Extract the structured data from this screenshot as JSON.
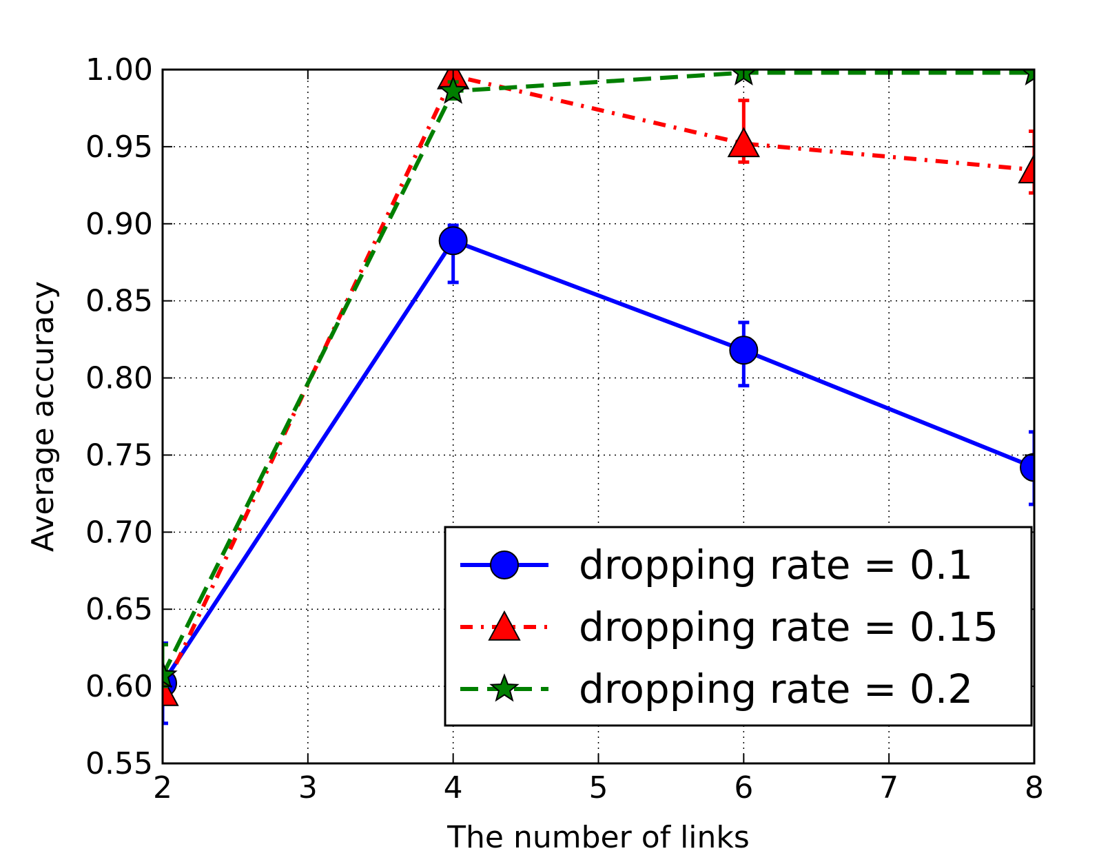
{
  "chart_data": {
    "type": "line",
    "title": "",
    "xlabel": "The number of links",
    "ylabel": "Average accuracy",
    "xlim": [
      2,
      8
    ],
    "ylim": [
      0.55,
      1.0
    ],
    "xticks": [
      "2",
      "3",
      "4",
      "5",
      "6",
      "7",
      "8"
    ],
    "yticks": [
      "0.55",
      "0.60",
      "0.65",
      "0.70",
      "0.75",
      "0.80",
      "0.85",
      "0.90",
      "0.95",
      "1.00"
    ],
    "grid": true,
    "legend_position": "lower-right",
    "series": [
      {
        "name": "dropping rate = 0.1",
        "color": "#0000ff",
        "marker": "circle",
        "line_style": "solid",
        "x": [
          2,
          4,
          6,
          8
        ],
        "y": [
          0.602,
          0.889,
          0.818,
          0.742
        ],
        "err_low": [
          0.576,
          0.862,
          0.795,
          0.718
        ],
        "err_high": [
          0.628,
          0.899,
          0.836,
          0.765
        ]
      },
      {
        "name": "dropping rate = 0.15",
        "color": "#ff0000",
        "marker": "triangle",
        "line_style": "dashdot",
        "x": [
          2,
          4,
          6,
          8
        ],
        "y": [
          0.596,
          0.996,
          0.952,
          0.935
        ],
        "err_low": [
          0.59,
          0.992,
          0.94,
          0.92
        ],
        "err_high": [
          0.612,
          1.0,
          0.98,
          0.96
        ]
      },
      {
        "name": "dropping rate = 0.2",
        "color": "#007f00",
        "marker": "star",
        "line_style": "dashed",
        "x": [
          2,
          4,
          6,
          8
        ],
        "y": [
          0.607,
          0.986,
          0.998,
          0.998
        ],
        "err_low": [
          0.6,
          0.981,
          0.997,
          0.997
        ],
        "err_high": [
          0.627,
          0.992,
          1.0,
          1.0
        ]
      }
    ]
  }
}
